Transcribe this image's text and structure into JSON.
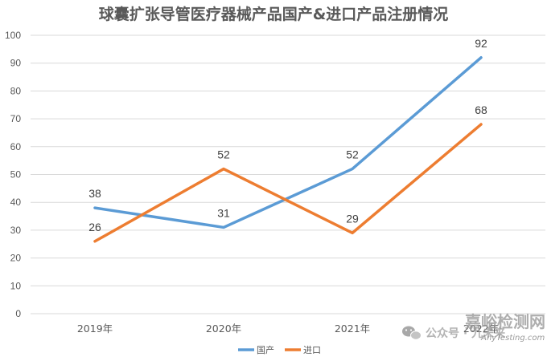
{
  "chart_data": {
    "type": "line",
    "title": "球囊扩张导管医疗器械产品国产&进口产品注册情况",
    "categories": [
      "2019年",
      "2020年",
      "2021年",
      "2022年"
    ],
    "series": [
      {
        "name": "国产",
        "values": [
          38,
          31,
          52,
          92
        ],
        "color": "#5b9bd5"
      },
      {
        "name": "进口",
        "values": [
          26,
          52,
          29,
          68
        ],
        "color": "#ed7d31"
      }
    ],
    "ylim": [
      0,
      100
    ],
    "yticks": [
      0,
      10,
      20,
      30,
      40,
      50,
      60,
      70,
      80,
      90,
      100
    ],
    "grid": true,
    "legend": "bottom",
    "xlabel": "",
    "ylabel": ""
  },
  "watermark": {
    "wechat_icon": "wechat-icon",
    "account": "公众号 · 九未来",
    "site_name": "嘉峪检测网",
    "site_url": "AnyTesting.com"
  }
}
